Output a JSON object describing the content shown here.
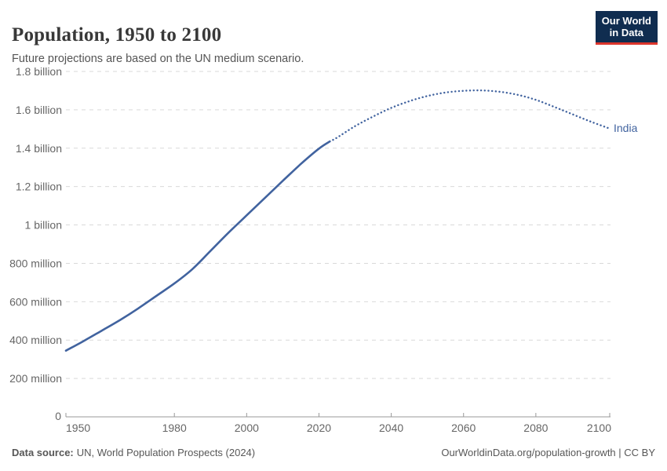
{
  "header": {
    "title": "Population, 1950 to 2100",
    "subtitle": "Future projections are based on the UN medium scenario."
  },
  "logo": {
    "line1": "Our World",
    "line2": "in Data",
    "bg_color": "#102d50",
    "accent_color": "#dc352c"
  },
  "footer": {
    "source_label": "Data source:",
    "source_text": "UN, World Population Prospects (2024)",
    "link_text": "OurWorldinData.org/population-growth | CC BY"
  },
  "chart_data": {
    "type": "line",
    "title": "Population, 1950 to 2100",
    "entity_label": "India",
    "unit": "people (millions)",
    "xlim": [
      1950,
      2100
    ],
    "ylim": [
      0,
      1800
    ],
    "grid": "horizontal dashed",
    "legend_position": "end-of-line label",
    "line_color": "#41639f",
    "axis_color": "#999999",
    "grid_color": "#d9d9d9",
    "tick_label_color": "#666666",
    "x_ticks": [
      1950,
      1980,
      2000,
      2020,
      2040,
      2060,
      2080,
      2100
    ],
    "y_ticks": [
      {
        "value": 0,
        "label": "0"
      },
      {
        "value": 200,
        "label": "200 million"
      },
      {
        "value": 400,
        "label": "400 million"
      },
      {
        "value": 600,
        "label": "600 million"
      },
      {
        "value": 800,
        "label": "800 million"
      },
      {
        "value": 1000,
        "label": "1 billion"
      },
      {
        "value": 1200,
        "label": "1.2 billion"
      },
      {
        "value": 1400,
        "label": "1.4 billion"
      },
      {
        "value": 1600,
        "label": "1.6 billion"
      },
      {
        "value": 1800,
        "label": "1.8 billion"
      }
    ],
    "series": [
      {
        "name": "India (historical estimates)",
        "style": "solid",
        "points": [
          [
            1950,
            345
          ],
          [
            1955,
            396
          ],
          [
            1960,
            450
          ],
          [
            1965,
            505
          ],
          [
            1970,
            565
          ],
          [
            1975,
            630
          ],
          [
            1980,
            695
          ],
          [
            1985,
            770
          ],
          [
            1990,
            865
          ],
          [
            1995,
            960
          ],
          [
            2000,
            1050
          ],
          [
            2005,
            1140
          ],
          [
            2010,
            1230
          ],
          [
            2015,
            1318
          ],
          [
            2020,
            1398
          ],
          [
            2023,
            1435
          ]
        ]
      },
      {
        "name": "India (UN medium scenario projection)",
        "style": "dotted",
        "points": [
          [
            2023,
            1435
          ],
          [
            2025,
            1455
          ],
          [
            2030,
            1515
          ],
          [
            2035,
            1565
          ],
          [
            2040,
            1610
          ],
          [
            2045,
            1645
          ],
          [
            2050,
            1672
          ],
          [
            2055,
            1690
          ],
          [
            2060,
            1699
          ],
          [
            2065,
            1701
          ],
          [
            2070,
            1694
          ],
          [
            2075,
            1678
          ],
          [
            2080,
            1652
          ],
          [
            2085,
            1616
          ],
          [
            2090,
            1578
          ],
          [
            2095,
            1540
          ],
          [
            2100,
            1505
          ]
        ]
      }
    ]
  }
}
